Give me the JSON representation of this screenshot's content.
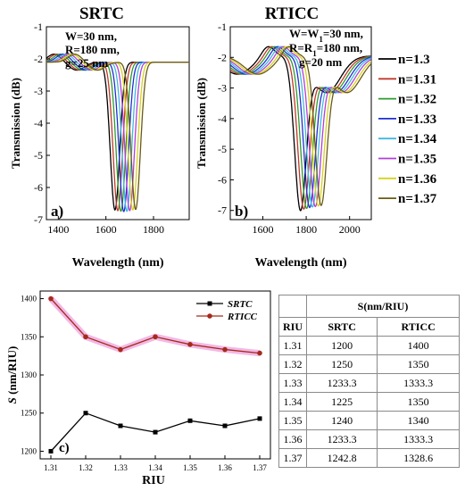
{
  "chart_data": [
    {
      "type": "line",
      "panel": "a)",
      "title": "SRTC",
      "xlabel": "Wavelength (nm)",
      "ylabel": "Transmission (dB)",
      "xlim": [
        1350,
        1950
      ],
      "ylim": [
        -7,
        -1
      ],
      "xticks": [
        1400,
        1600,
        1800
      ],
      "yticks": [
        -7,
        -6,
        -5,
        -4,
        -3,
        -2,
        -1
      ],
      "annotations": [
        "W=30 nm,",
        "R=180 nm,",
        "g=25 nm"
      ],
      "resonance_nm": [
        1638,
        1650,
        1663,
        1675,
        1688,
        1700,
        1713,
        1725
      ],
      "dip_db": [
        -6.7,
        -6.72,
        -6.74,
        -6.75,
        -6.74,
        -6.72,
        -6.7,
        -6.68
      ],
      "series": [
        {
          "name": "n=1.3",
          "color": "#000000"
        },
        {
          "name": "n=1.31",
          "color": "#c0392b"
        },
        {
          "name": "n=1.32",
          "color": "#2e9b2e"
        },
        {
          "name": "n=1.33",
          "color": "#1f2fd1"
        },
        {
          "name": "n=1.34",
          "color": "#3fb8e0"
        },
        {
          "name": "n=1.35",
          "color": "#b13fd6"
        },
        {
          "name": "n=1.36",
          "color": "#d6d21f"
        },
        {
          "name": "n=1.37",
          "color": "#6b5a12"
        }
      ]
    },
    {
      "type": "line",
      "panel": "b)",
      "title": "RTICC",
      "xlabel": "Wavelength (nm)",
      "ylabel": "Transmission (dB)",
      "xlim": [
        1450,
        2100
      ],
      "ylim": [
        -7.3,
        -1
      ],
      "xticks": [
        1600,
        1800,
        2000
      ],
      "yticks": [
        -7,
        -6,
        -5,
        -4,
        -3,
        -2,
        -1
      ],
      "annotations": [
        "W=W1=30 nm,",
        "R=R1=180 nm,",
        "g=20 nm"
      ],
      "resonance_nm": [
        1773,
        1788,
        1801,
        1815,
        1828,
        1841,
        1855,
        1868
      ],
      "dip_db": [
        -7.05,
        -7.0,
        -6.98,
        -6.95,
        -6.93,
        -6.92,
        -6.9,
        -6.88
      ],
      "series": [
        {
          "name": "n=1.3",
          "color": "#000000"
        },
        {
          "name": "n=1.31",
          "color": "#c0392b"
        },
        {
          "name": "n=1.32",
          "color": "#2e9b2e"
        },
        {
          "name": "n=1.33",
          "color": "#1f2fd1"
        },
        {
          "name": "n=1.34",
          "color": "#3fb8e0"
        },
        {
          "name": "n=1.35",
          "color": "#b13fd6"
        },
        {
          "name": "n=1.36",
          "color": "#d6d21f"
        },
        {
          "name": "n=1.37",
          "color": "#6b5a12"
        }
      ]
    },
    {
      "type": "line",
      "panel": "c)",
      "xlabel": "RIU",
      "ylabel": "S (nm/RIU)",
      "xlim": [
        1.31,
        1.37
      ],
      "ylim": [
        1190,
        1410
      ],
      "x": [
        1.31,
        1.32,
        1.33,
        1.34,
        1.35,
        1.36,
        1.37
      ],
      "xtick_labels": [
        "1.31",
        "1.32",
        "1.33",
        "1.34",
        "1.35",
        "1.36",
        "1.37"
      ],
      "yticks": [
        1200,
        1250,
        1300,
        1350,
        1400
      ],
      "legend": "top-right",
      "series": [
        {
          "name": "SRTC",
          "color": "#000000",
          "values": [
            1200,
            1250,
            1233.3,
            1225,
            1240,
            1233.3,
            1242.8
          ]
        },
        {
          "name": "RTICC",
          "color": "#a52a1a",
          "values": [
            1400,
            1350,
            1333.3,
            1350,
            1340,
            1333.3,
            1328.6
          ]
        }
      ]
    },
    {
      "type": "table",
      "header_top": "S(nm/RIU)",
      "columns": [
        "RIU",
        "SRTC",
        "RTICC"
      ],
      "rows": [
        [
          "1.31",
          "1200",
          "1400"
        ],
        [
          "1.32",
          "1250",
          "1350"
        ],
        [
          "1.33",
          "1233.3",
          "1333.3"
        ],
        [
          "1.34",
          "1225",
          "1350"
        ],
        [
          "1.35",
          "1240",
          "1340"
        ],
        [
          "1.36",
          "1233.3",
          "1333.3"
        ],
        [
          "1.37",
          "1242.8",
          "1328.6"
        ]
      ]
    }
  ]
}
